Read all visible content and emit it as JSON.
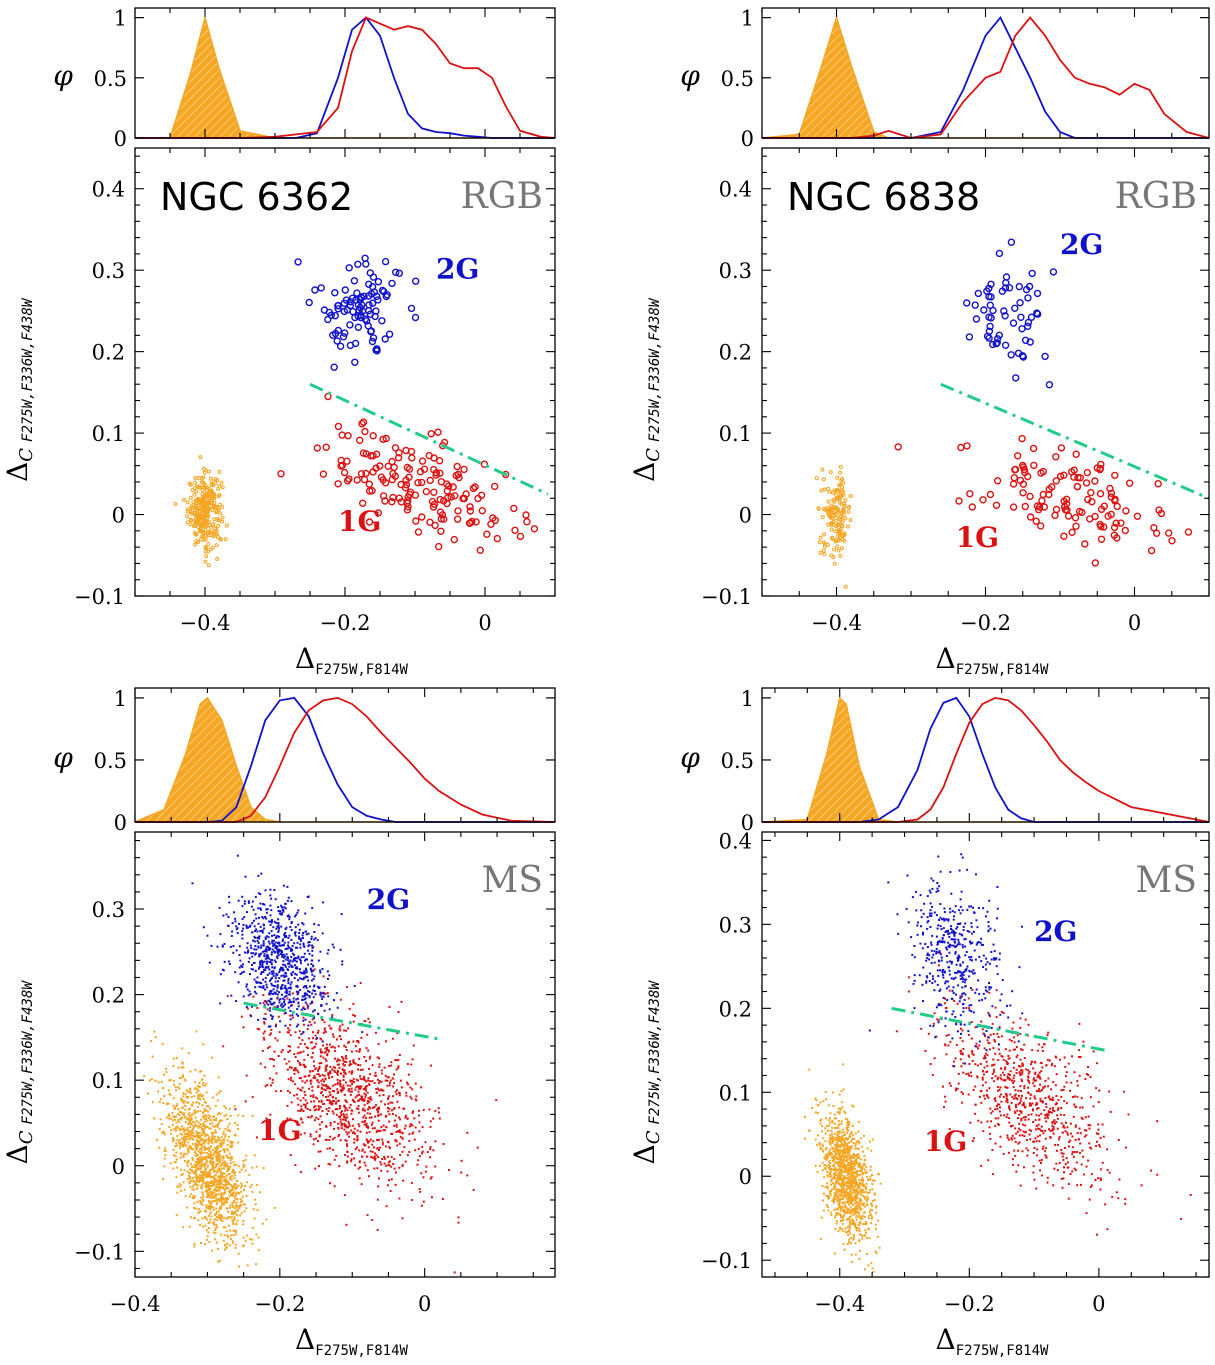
{
  "colors": {
    "first_gen": "#dd1111",
    "second_gen": "#1111cc",
    "reference": "#f5a623",
    "divider": "#22cc88",
    "frame": "#000000",
    "tag": "#777777"
  },
  "labels": {
    "phi": "φ",
    "x_axis_symbol": "Δ",
    "x_axis_subscript": "F275W,F814W",
    "y_axis_symbol": "Δ",
    "y_axis_c": "C",
    "y_axis_subscript": "F275W,F336W,F438W",
    "label_1g": "1G",
    "label_2g": "2G"
  },
  "chart_data": [
    {
      "type": "scatter",
      "cluster": "NGC 6362",
      "tag": "RGB",
      "xlim": [
        -0.5,
        0.1
      ],
      "ylim": [
        -0.1,
        0.45
      ],
      "xticks": [
        -0.4,
        -0.2,
        0
      ],
      "yticks": [
        -0.1,
        0,
        0.1,
        0.2,
        0.3,
        0.4
      ],
      "hist_yticks": [
        0,
        0.5,
        1
      ],
      "ref_center": [
        -0.4,
        0.005
      ],
      "ref_spread": [
        0.012,
        0.022
      ],
      "ref_count": 280,
      "first_gen": {
        "center": [
          -0.09,
          0.035
        ],
        "spread": [
          0.07,
          0.028
        ],
        "count": 160
      },
      "second_gen": {
        "center": [
          -0.18,
          0.255
        ],
        "spread": [
          0.03,
          0.035
        ],
        "count": 95
      },
      "divider": {
        "x": [
          -0.25,
          0.09
        ],
        "y": [
          0.16,
          0.025
        ]
      },
      "label_1g_pos": [
        -0.21,
        -0.02
      ],
      "label_2g_pos": [
        -0.07,
        0.29
      ],
      "density": {
        "x": [
          -0.5,
          -0.45,
          -0.42,
          -0.4,
          -0.38,
          -0.35,
          -0.3,
          -0.27,
          -0.24,
          -0.21,
          -0.19,
          -0.17,
          -0.15,
          -0.13,
          -0.11,
          -0.09,
          -0.07,
          -0.05,
          -0.03,
          -0.01,
          0.01,
          0.03,
          0.05,
          0.08,
          0.1
        ],
        "reference": [
          0,
          0.0,
          0.55,
          1.0,
          0.58,
          0.06,
          0,
          0,
          0,
          0,
          0,
          0,
          0,
          0,
          0,
          0,
          0,
          0,
          0,
          0,
          0,
          0,
          0,
          0,
          0
        ],
        "first_gen": [
          0,
          0,
          0,
          0,
          0,
          0,
          0.01,
          0.03,
          0.05,
          0.25,
          0.72,
          1.0,
          0.95,
          0.9,
          0.93,
          0.9,
          0.78,
          0.62,
          0.58,
          0.58,
          0.5,
          0.26,
          0.06,
          0.01,
          0
        ],
        "second_gen": [
          0,
          0,
          0,
          0,
          0,
          0,
          0,
          0,
          0.04,
          0.5,
          0.9,
          1.0,
          0.85,
          0.5,
          0.2,
          0.08,
          0.05,
          0.04,
          0.02,
          0.01,
          0,
          0,
          0,
          0,
          0
        ]
      }
    },
    {
      "type": "scatter",
      "cluster": "NGC 6838",
      "tag": "RGB",
      "xlim": [
        -0.5,
        0.1
      ],
      "ylim": [
        -0.1,
        0.45
      ],
      "xticks": [
        -0.4,
        -0.2,
        0
      ],
      "yticks": [
        -0.1,
        0,
        0.1,
        0.2,
        0.3,
        0.4
      ],
      "hist_yticks": [
        0,
        0.5,
        1
      ],
      "ref_center": [
        -0.4,
        0.0
      ],
      "ref_spread": [
        0.01,
        0.025
      ],
      "ref_count": 150,
      "first_gen": {
        "center": [
          -0.1,
          0.025
        ],
        "spread": [
          0.07,
          0.028
        ],
        "count": 120
      },
      "second_gen": {
        "center": [
          -0.17,
          0.245
        ],
        "spread": [
          0.028,
          0.038
        ],
        "count": 60
      },
      "divider": {
        "x": [
          -0.26,
          0.1
        ],
        "y": [
          0.16,
          0.02
        ]
      },
      "label_1g_pos": [
        -0.24,
        -0.04
      ],
      "label_2g_pos": [
        -0.1,
        0.32
      ],
      "density": {
        "x": [
          -0.5,
          -0.45,
          -0.42,
          -0.4,
          -0.38,
          -0.35,
          -0.33,
          -0.3,
          -0.26,
          -0.23,
          -0.2,
          -0.18,
          -0.16,
          -0.14,
          -0.12,
          -0.1,
          -0.08,
          -0.06,
          -0.04,
          -0.02,
          0.0,
          0.02,
          0.04,
          0.07,
          0.1
        ],
        "reference": [
          0,
          0.03,
          0.6,
          1.0,
          0.6,
          0.05,
          0,
          0,
          0,
          0,
          0,
          0,
          0,
          0,
          0,
          0,
          0,
          0,
          0,
          0,
          0,
          0,
          0,
          0,
          0
        ],
        "first_gen": [
          0,
          0,
          0,
          0,
          0,
          0.02,
          0.06,
          0.0,
          0.03,
          0.3,
          0.5,
          0.55,
          0.85,
          1.0,
          0.85,
          0.65,
          0.5,
          0.45,
          0.42,
          0.36,
          0.45,
          0.4,
          0.2,
          0.05,
          0
        ],
        "second_gen": [
          0,
          0,
          0,
          0,
          0,
          0,
          0,
          0,
          0.05,
          0.4,
          0.85,
          1.0,
          0.75,
          0.5,
          0.22,
          0.05,
          0,
          0,
          0,
          0,
          0,
          0,
          0,
          0,
          0
        ]
      }
    },
    {
      "type": "scatter",
      "tag": "MS",
      "xlim": [
        -0.4,
        0.18
      ],
      "ylim": [
        -0.13,
        0.39
      ],
      "xticks": [
        -0.4,
        -0.2,
        0
      ],
      "yticks": [
        -0.1,
        0,
        0.1,
        0.2,
        0.3
      ],
      "hist_yticks": [
        0,
        0.5,
        1
      ],
      "ref_center": [
        -0.3,
        0.005
      ],
      "ref_spread": [
        0.028,
        0.04
      ],
      "ref_count": 1400,
      "first_gen": {
        "center": [
          -0.11,
          0.085
        ],
        "spread": [
          0.06,
          0.045
        ],
        "count": 1100
      },
      "second_gen": {
        "center": [
          -0.2,
          0.24
        ],
        "spread": [
          0.035,
          0.035
        ],
        "count": 800
      },
      "divider": {
        "x": [
          -0.25,
          0.02
        ],
        "y": [
          0.19,
          0.148
        ]
      },
      "label_1g_pos": [
        -0.23,
        0.03
      ],
      "label_2g_pos": [
        -0.08,
        0.3
      ],
      "density": {
        "x": [
          -0.4,
          -0.36,
          -0.33,
          -0.31,
          -0.3,
          -0.28,
          -0.26,
          -0.24,
          -0.22,
          -0.2,
          -0.18,
          -0.16,
          -0.14,
          -0.12,
          -0.1,
          -0.08,
          -0.06,
          -0.04,
          -0.02,
          0.0,
          0.02,
          0.05,
          0.08,
          0.12,
          0.18
        ],
        "reference": [
          0,
          0.1,
          0.55,
          0.95,
          1.0,
          0.82,
          0.45,
          0.12,
          0.02,
          0,
          0,
          0,
          0,
          0,
          0,
          0,
          0,
          0,
          0,
          0,
          0,
          0,
          0,
          0,
          0
        ],
        "first_gen": [
          0,
          0,
          0,
          0,
          0,
          0,
          0,
          0.05,
          0.2,
          0.45,
          0.72,
          0.9,
          0.98,
          1.0,
          0.95,
          0.85,
          0.72,
          0.6,
          0.48,
          0.35,
          0.25,
          0.14,
          0.06,
          0.01,
          0
        ],
        "second_gen": [
          0,
          0,
          0,
          0,
          0,
          0.01,
          0.12,
          0.45,
          0.82,
          0.98,
          1.0,
          0.85,
          0.55,
          0.3,
          0.12,
          0.05,
          0.02,
          0,
          0,
          0,
          0,
          0,
          0,
          0,
          0
        ]
      }
    },
    {
      "type": "scatter",
      "tag": "MS",
      "xlim": [
        -0.52,
        0.17
      ],
      "ylim": [
        -0.12,
        0.41
      ],
      "xticks": [
        -0.4,
        -0.2,
        0
      ],
      "yticks": [
        -0.1,
        0,
        0.1,
        0.2,
        0.3,
        0.4
      ],
      "hist_yticks": [
        0,
        0.5,
        1
      ],
      "ref_center": [
        -0.39,
        0.0
      ],
      "ref_spread": [
        0.02,
        0.035
      ],
      "ref_count": 1200,
      "first_gen": {
        "center": [
          -0.11,
          0.09
        ],
        "spread": [
          0.065,
          0.045
        ],
        "count": 800
      },
      "second_gen": {
        "center": [
          -0.22,
          0.26
        ],
        "spread": [
          0.035,
          0.045
        ],
        "count": 450
      },
      "divider": {
        "x": [
          -0.32,
          0.01
        ],
        "y": [
          0.2,
          0.15
        ]
      },
      "label_1g_pos": [
        -0.27,
        0.03
      ],
      "label_2g_pos": [
        -0.1,
        0.28
      ],
      "density": {
        "x": [
          -0.52,
          -0.45,
          -0.42,
          -0.4,
          -0.39,
          -0.37,
          -0.34,
          -0.31,
          -0.28,
          -0.26,
          -0.24,
          -0.22,
          -0.2,
          -0.18,
          -0.16,
          -0.14,
          -0.12,
          -0.1,
          -0.08,
          -0.06,
          -0.04,
          -0.02,
          0.0,
          0.05,
          0.17
        ],
        "reference": [
          0,
          0.02,
          0.55,
          1.0,
          0.95,
          0.45,
          0.02,
          0,
          0,
          0,
          0,
          0,
          0,
          0,
          0,
          0,
          0,
          0,
          0,
          0,
          0,
          0,
          0,
          0,
          0
        ],
        "first_gen": [
          0,
          0,
          0,
          0,
          0,
          0,
          0,
          0,
          0.02,
          0.1,
          0.28,
          0.55,
          0.8,
          0.95,
          1.0,
          0.98,
          0.9,
          0.78,
          0.65,
          0.5,
          0.4,
          0.32,
          0.25,
          0.12,
          0
        ],
        "second_gen": [
          0,
          0,
          0,
          0,
          0,
          0,
          0.02,
          0.12,
          0.42,
          0.75,
          0.96,
          1.0,
          0.85,
          0.55,
          0.28,
          0.1,
          0.03,
          0,
          0,
          0,
          0,
          0,
          0,
          0,
          0
        ]
      }
    }
  ]
}
